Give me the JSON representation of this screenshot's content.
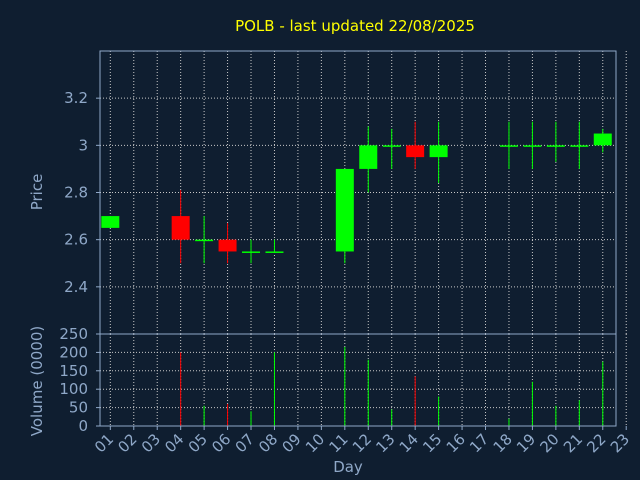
{
  "chart_data": {
    "type": "candlestick",
    "title": "POLB - last updated 22/08/2025",
    "xlabel": "Day",
    "ylabel": "Price",
    "volume_label": "Volume (0000)",
    "x_ticks": [
      "01",
      "02",
      "03",
      "04",
      "05",
      "06",
      "07",
      "08",
      "09",
      "10",
      "11",
      "12",
      "13",
      "14",
      "15",
      "16",
      "17",
      "18",
      "19",
      "20",
      "21",
      "22",
      "23"
    ],
    "price_ticks": [
      "2.4",
      "2.6",
      "2.8",
      "3",
      "3.2"
    ],
    "volume_ticks": [
      "0",
      "50",
      "100",
      "150",
      "200",
      "250"
    ],
    "price_range": [
      2.2,
      3.4
    ],
    "volume_range": [
      0,
      250
    ],
    "grid": true,
    "candles": [
      {
        "day": 1,
        "open": 2.65,
        "close": 2.7,
        "high": 2.7,
        "low": 2.65,
        "volume": 0
      },
      {
        "day": 4,
        "open": 2.7,
        "close": 2.6,
        "high": 2.81,
        "low": 2.5,
        "volume": 200
      },
      {
        "day": 5,
        "open": 2.6,
        "close": 2.6,
        "high": 2.7,
        "low": 2.5,
        "volume": 55
      },
      {
        "day": 6,
        "open": 2.6,
        "close": 2.55,
        "high": 2.67,
        "low": 2.5,
        "volume": 60
      },
      {
        "day": 7,
        "open": 2.55,
        "close": 2.55,
        "high": 2.6,
        "low": 2.5,
        "volume": 40
      },
      {
        "day": 8,
        "open": 2.55,
        "close": 2.55,
        "high": 2.6,
        "low": 2.55,
        "volume": 200
      },
      {
        "day": 11,
        "open": 2.55,
        "close": 2.9,
        "high": 2.9,
        "low": 2.5,
        "volume": 215
      },
      {
        "day": 12,
        "open": 2.9,
        "close": 3.0,
        "high": 3.08,
        "low": 2.8,
        "volume": 180
      },
      {
        "day": 13,
        "open": 3.0,
        "close": 3.0,
        "high": 3.07,
        "low": 2.9,
        "volume": 45
      },
      {
        "day": 14,
        "open": 3.0,
        "close": 2.95,
        "high": 3.1,
        "low": 2.9,
        "volume": 135
      },
      {
        "day": 15,
        "open": 2.95,
        "close": 3.0,
        "high": 3.1,
        "low": 2.84,
        "volume": 80
      },
      {
        "day": 18,
        "open": 3.0,
        "close": 3.0,
        "high": 3.1,
        "low": 2.9,
        "volume": 20
      },
      {
        "day": 19,
        "open": 3.0,
        "close": 3.0,
        "high": 3.1,
        "low": 2.9,
        "volume": 120
      },
      {
        "day": 20,
        "open": 3.0,
        "close": 3.0,
        "high": 3.1,
        "low": 2.93,
        "volume": 55
      },
      {
        "day": 21,
        "open": 3.0,
        "close": 3.0,
        "high": 3.1,
        "low": 2.9,
        "volume": 70
      },
      {
        "day": 22,
        "open": 3.0,
        "close": 3.05,
        "high": 3.07,
        "low": 2.97,
        "volume": 175
      }
    ],
    "colors": {
      "background": "#0f1e30",
      "up": "#00ff00",
      "down": "#ff0000",
      "axis": "#8fa8c8",
      "grid": "#c8c8c8",
      "title": "#ffff00"
    }
  }
}
